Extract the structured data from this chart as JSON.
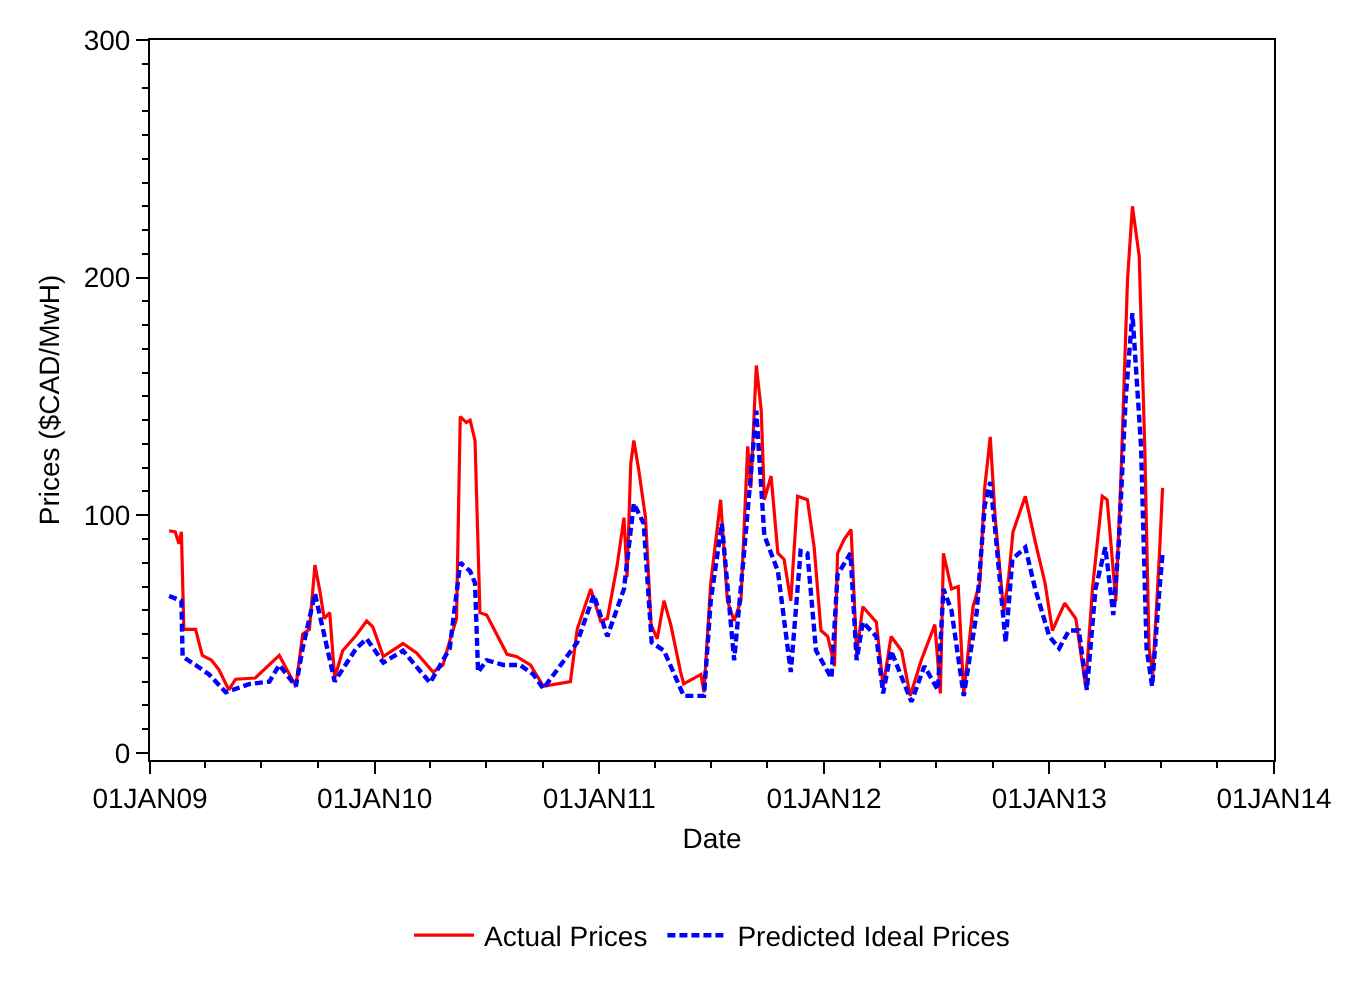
{
  "chart_data": {
    "type": "line",
    "xlabel": "Date",
    "ylabel": "Prices ($CAD/MwH)",
    "xlim": [
      "2009-01-01",
      "2014-01-01"
    ],
    "xticks": [
      {
        "value": "2009-01-01",
        "label": "01JAN09"
      },
      {
        "value": "2010-01-01",
        "label": "01JAN10"
      },
      {
        "value": "2011-01-01",
        "label": "01JAN11"
      },
      {
        "value": "2012-01-01",
        "label": "01JAN12"
      },
      {
        "value": "2013-01-01",
        "label": "01JAN13"
      },
      {
        "value": "2014-01-01",
        "label": "01JAN14"
      }
    ],
    "ylim": [
      -3,
      300
    ],
    "yticks": [
      0,
      100,
      200,
      300
    ],
    "legend": "bottom",
    "marker": "none",
    "series": [
      {
        "name": "Actual Prices",
        "color": "#ff0000",
        "line_style": "solid",
        "x": [
          "2009-02-01",
          "2009-02-11",
          "2009-02-17",
          "2009-02-21",
          "2009-02-25",
          "2009-03-16",
          "2009-03-27",
          "2009-04-11",
          "2009-04-23",
          "2009-05-09",
          "2009-05-20",
          "2009-06-21",
          "2009-07-30",
          "2009-08-26",
          "2009-09-06",
          "2009-09-17",
          "2009-09-26",
          "2009-10-04",
          "2009-10-11",
          "2009-10-20",
          "2009-10-28",
          "2009-11-10",
          "2009-12-02",
          "2009-12-19",
          "2009-12-29",
          "2010-01-15",
          "2010-02-16",
          "2010-03-10",
          "2010-04-06",
          "2010-04-22",
          "2010-05-05",
          "2010-05-14",
          "2010-05-20",
          "2010-05-30",
          "2010-06-05",
          "2010-06-13",
          "2010-06-21",
          "2010-07-02",
          "2010-07-18",
          "2010-08-04",
          "2010-08-20",
          "2010-09-11",
          "2010-10-02",
          "2010-11-15",
          "2010-11-26",
          "2010-12-18",
          "2011-01-03",
          "2011-01-14",
          "2011-01-30",
          "2011-02-10",
          "2011-02-15",
          "2011-02-21",
          "2011-02-26",
          "2011-03-06",
          "2011-03-17",
          "2011-03-26",
          "2011-04-05",
          "2011-04-16",
          "2011-04-27",
          "2011-05-13",
          "2011-05-18",
          "2011-06-15",
          "2011-06-20",
          "2011-07-01",
          "2011-07-17",
          "2011-07-28",
          "2011-08-08",
          "2011-08-19",
          "2011-08-30",
          "2011-09-04",
          "2011-09-13",
          "2011-09-21",
          "2011-09-26",
          "2011-10-07",
          "2011-10-18",
          "2011-10-28",
          "2011-11-08",
          "2011-11-19",
          "2011-12-05",
          "2011-12-16",
          "2011-12-27",
          "2012-01-07",
          "2012-01-18",
          "2012-01-23",
          "2012-02-03",
          "2012-02-14",
          "2012-02-23",
          "2012-03-04",
          "2012-03-26",
          "2012-04-06",
          "2012-04-19",
          "2012-05-06",
          "2012-05-20",
          "2012-06-07",
          "2012-06-29",
          "2012-07-08",
          "2012-07-13",
          "2012-07-26",
          "2012-08-06",
          "2012-08-15",
          "2012-08-30",
          "2012-09-10",
          "2012-09-18",
          "2012-09-27",
          "2012-10-05",
          "2012-10-19",
          "2012-10-27",
          "2012-11-03",
          "2012-11-23",
          "2012-12-09",
          "2012-12-25",
          "2013-01-06",
          "2013-01-26",
          "2013-02-13",
          "2013-03-01",
          "2013-03-12",
          "2013-03-28",
          "2013-04-05",
          "2013-04-19",
          "2013-04-27",
          "2013-05-08",
          "2013-05-16",
          "2013-05-27",
          "2013-06-05",
          "2013-06-12",
          "2013-06-18",
          "2013-06-29",
          "2013-07-04"
        ],
        "values": [
          93.5,
          93,
          88,
          93,
          52,
          52,
          41,
          39,
          35,
          26.5,
          31,
          31.5,
          41,
          28,
          50,
          52,
          79,
          68,
          56.5,
          59,
          31.5,
          43,
          49.5,
          55.5,
          53,
          40.5,
          46,
          42,
          34,
          37,
          49,
          56.5,
          141.5,
          139,
          140,
          131.5,
          59,
          58,
          50,
          41.5,
          40.5,
          37,
          28,
          30,
          52,
          69,
          55.5,
          56.5,
          79,
          99,
          74,
          121.5,
          131.5,
          119,
          99,
          54,
          48,
          64,
          54,
          34,
          29,
          33,
          25.5,
          71.5,
          106.5,
          64,
          55.5,
          64,
          129,
          111.5,
          163,
          144,
          106.5,
          116.5,
          84,
          81.5,
          64,
          108,
          106.5,
          86.5,
          51.5,
          49,
          36.5,
          84,
          90,
          94,
          41.5,
          61.5,
          55,
          28,
          49,
          43,
          24,
          39,
          54,
          25,
          84,
          69,
          70,
          25,
          61.5,
          71.5,
          111.5,
          133,
          99,
          59,
          74,
          93,
          108,
          89,
          71.5,
          51.5,
          63,
          56.5,
          28,
          69,
          108,
          106.5,
          64,
          113,
          199,
          230,
          209,
          129,
          44,
          33,
          84,
          111.5
        ]
      },
      {
        "name": "Predicted Ideal Prices",
        "color": "#0000ff",
        "line_style": "dashed",
        "x": [
          "2009-02-01",
          "2009-02-21",
          "2009-02-23",
          "2009-03-16",
          "2009-04-07",
          "2009-05-04",
          "2009-06-12",
          "2009-07-14",
          "2009-07-30",
          "2009-08-26",
          "2009-09-06",
          "2009-09-26",
          "2009-10-09",
          "2009-10-28",
          "2009-12-02",
          "2009-12-19",
          "2010-01-15",
          "2010-02-16",
          "2010-04-01",
          "2010-05-03",
          "2010-05-20",
          "2010-06-05",
          "2010-06-13",
          "2010-06-18",
          "2010-07-02",
          "2010-07-29",
          "2010-08-25",
          "2010-09-16",
          "2010-10-02",
          "2010-11-26",
          "2010-12-23",
          "2011-01-14",
          "2011-02-10",
          "2011-02-26",
          "2011-03-14",
          "2011-03-27",
          "2011-04-16",
          "2011-05-18",
          "2011-06-20",
          "2011-07-01",
          "2011-07-19",
          "2011-08-08",
          "2011-08-24",
          "2011-09-13",
          "2011-09-26",
          "2011-10-18",
          "2011-11-08",
          "2011-11-24",
          "2011-12-05",
          "2011-12-19",
          "2012-01-13",
          "2012-01-23",
          "2012-02-13",
          "2012-02-23",
          "2012-03-04",
          "2012-03-26",
          "2012-04-06",
          "2012-04-19",
          "2012-05-22",
          "2012-06-12",
          "2012-07-04",
          "2012-07-13",
          "2012-07-26",
          "2012-08-15",
          "2012-09-05",
          "2012-09-18",
          "2012-09-27",
          "2012-10-05",
          "2012-10-22",
          "2012-11-02",
          "2012-11-23",
          "2012-12-09",
          "2013-01-01",
          "2013-01-17",
          "2013-02-02",
          "2013-02-18",
          "2013-03-03",
          "2013-03-17",
          "2013-04-02",
          "2013-04-15",
          "2013-04-24",
          "2013-05-05",
          "2013-05-16",
          "2013-05-30",
          "2013-06-08",
          "2013-06-17",
          "2013-06-29",
          "2013-07-04"
        ],
        "values": [
          66,
          64,
          40.5,
          37,
          33,
          25.5,
          29,
          30,
          37,
          28,
          44,
          67,
          52,
          30,
          44,
          48,
          38,
          43,
          29.5,
          44,
          80,
          76.5,
          71.5,
          34,
          39,
          37,
          37,
          33,
          27,
          46.5,
          66.5,
          49,
          69,
          105,
          96.5,
          46.5,
          43,
          24,
          24,
          64,
          96.5,
          39,
          84,
          144,
          91.5,
          76.5,
          34,
          85,
          84,
          43,
          31.5,
          75,
          84,
          39,
          55,
          49,
          25,
          43,
          21.5,
          36.5,
          26.5,
          69,
          60,
          24,
          59,
          104,
          114,
          94,
          46.5,
          81.5,
          86.5,
          69,
          49,
          44,
          51.5,
          51.5,
          26.5,
          69,
          86.5,
          58,
          89,
          149,
          185,
          129,
          44,
          28,
          69,
          84
        ]
      }
    ]
  }
}
